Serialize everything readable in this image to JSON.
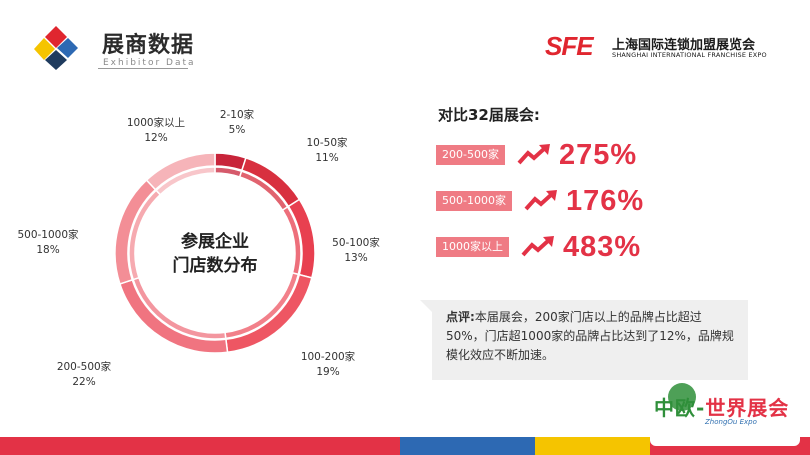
{
  "header": {
    "title_cn": "展商数据",
    "title_en": "Exhibitor Data",
    "brand_mark": "SFE",
    "brand_cn": "上海国际连锁加盟展览会",
    "brand_en": "SHANGHAI INTERNATIONAL FRANCHISE EXPO"
  },
  "colors": {
    "accent": "#e33246",
    "badge": "#ef7b84",
    "logo": [
      "#e0262f",
      "#2d69b3",
      "#f5c400",
      "#1f3b5e"
    ]
  },
  "chart_data": {
    "type": "pie",
    "title": "参展企业门店数分布",
    "title_lines": [
      "参展企业",
      "门店数分布"
    ],
    "categories": [
      "2-10家",
      "10-50家",
      "50-100家",
      "100-200家",
      "200-500家",
      "500-1000家",
      "1000家以上"
    ],
    "values": [
      5,
      11,
      13,
      19,
      22,
      18,
      12
    ],
    "value_labels": [
      "5%",
      "11%",
      "13%",
      "19%",
      "22%",
      "18%",
      "12%"
    ],
    "colors": [
      "#c8243a",
      "#d8303f",
      "#e84050",
      "#ee5663",
      "#f07480",
      "#f38e96",
      "#f6b4b9"
    ]
  },
  "comparison": {
    "title": "对比32届展会:",
    "rows": [
      {
        "label": "200-500家",
        "value": "275%"
      },
      {
        "label": "500-1000家",
        "value": "176%"
      },
      {
        "label": "1000家以上",
        "value": "483%"
      }
    ]
  },
  "comment": {
    "lead": "点评:",
    "text": "本届展会，200家门店以上的品牌占比超过50%，门店超1000家的品牌占比达到了12%，品牌规模化效应不断加速。"
  },
  "expo": {
    "name_part1": "中欧-",
    "name_part2": "世界展会",
    "name_en": "ZhongOu Expo"
  },
  "footer_colors": [
    "#e33246",
    "#2d69b3",
    "#f5c400",
    "#e33246"
  ]
}
